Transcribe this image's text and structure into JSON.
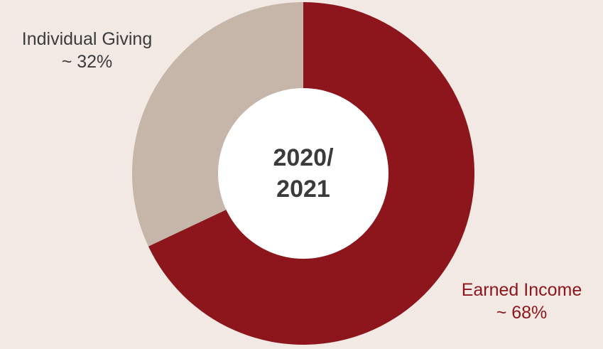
{
  "colors": {
    "background": "#F2E9E5",
    "center": "#FFFFFF",
    "center_text": "#3B3B3B"
  },
  "chart_data": {
    "type": "pie",
    "center_label": [
      "2020/",
      "2021"
    ],
    "slices": [
      {
        "name": "Earned Income",
        "value": 68,
        "label": "~ 68%",
        "color": "#8C161B"
      },
      {
        "name": "Individual Giving",
        "value": 32,
        "label": "~ 32%",
        "color": "#C6B6A9"
      }
    ]
  }
}
